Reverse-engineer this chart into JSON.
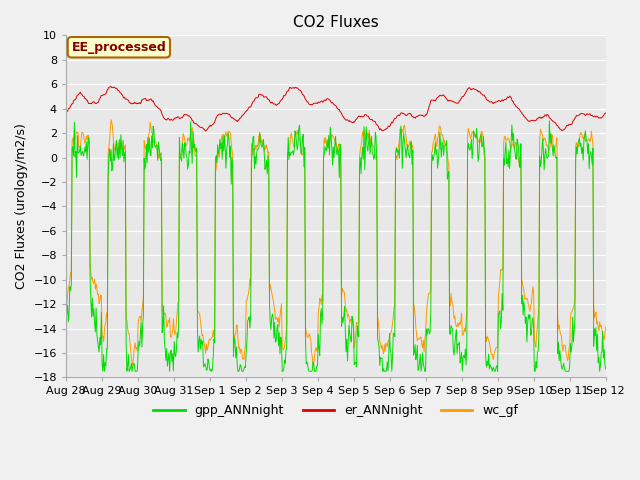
{
  "title": "CO2 Fluxes",
  "ylabel": "CO2 Fluxes (urology/m2/s)",
  "ylim": [
    -18,
    10
  ],
  "yticks": [
    -18,
    -16,
    -14,
    -12,
    -10,
    -8,
    -6,
    -4,
    -2,
    0,
    2,
    4,
    6,
    8,
    10
  ],
  "xtick_labels": [
    "Aug 28",
    "Aug 29",
    "Aug 30",
    "Aug 31",
    "Sep 1",
    "Sep 2",
    "Sep 3",
    "Sep 4",
    "Sep 5",
    "Sep 6",
    "Sep 7",
    "Sep 8",
    "Sep 9",
    "Sep 10",
    "Sep 11",
    "Sep 12"
  ],
  "n_days": 15,
  "points_per_day": 48,
  "colors": {
    "gpp": "#00dd00",
    "er": "#dd0000",
    "wc": "#ff9900"
  },
  "legend_labels": [
    "gpp_ANNnight",
    "er_ANNnight",
    "wc_gf"
  ],
  "ee_label": "EE_processed",
  "ee_label_color": "#880000",
  "ee_bg_color": "#ffffcc",
  "ee_border_color": "#aa6600",
  "fig_facecolor": "#f0f0f0",
  "plot_bg_color": "#e8e8e8",
  "title_fontsize": 11,
  "axis_fontsize": 9,
  "tick_fontsize": 8,
  "legend_fontsize": 9,
  "line_width": 0.7,
  "seed": 123
}
